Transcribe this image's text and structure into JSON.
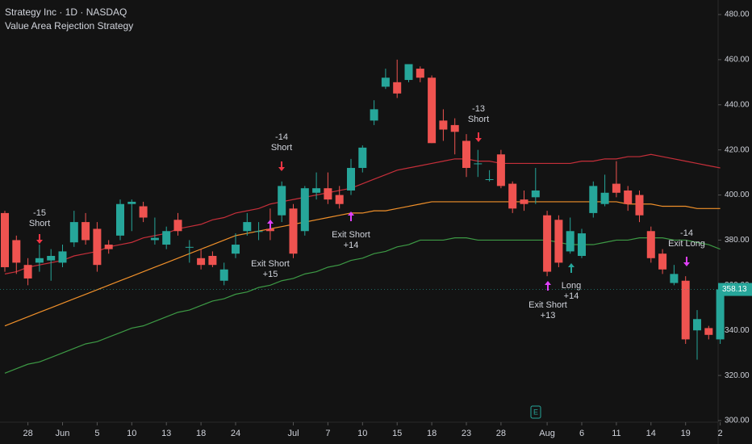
{
  "chart_data": {
    "type": "candlestick",
    "title": "Strategy Inc · 1D · NASDAQ",
    "subtitle": "Value Area Rejection Strategy",
    "categories": [
      null,
      null,
      "28",
      null,
      null,
      "Jun",
      null,
      null,
      "5",
      null,
      null,
      "10",
      null,
      null,
      "13",
      null,
      null,
      "18",
      null,
      null,
      "24",
      null,
      null,
      null,
      null,
      "Jul",
      null,
      null,
      "7",
      null,
      null,
      "10",
      null,
      null,
      "15",
      null,
      null,
      "18",
      null,
      null,
      "23",
      null,
      null,
      "28",
      null,
      null,
      null,
      "Aug",
      null,
      null,
      "6",
      null,
      null,
      "11",
      null,
      null,
      "14",
      null,
      null,
      "19",
      null,
      null,
      "2"
    ],
    "open": [
      392,
      380,
      369,
      370,
      371,
      370,
      379,
      388,
      385,
      378,
      382,
      396,
      395,
      380,
      378,
      389,
      377,
      372,
      373,
      362,
      374,
      384,
      384,
      385,
      391,
      394,
      384,
      401,
      403,
      400,
      402,
      412,
      433,
      448,
      450,
      451,
      456,
      452,
      433,
      431,
      424,
      414,
      407,
      418,
      405,
      398,
      399,
      391,
      389,
      375,
      373,
      392,
      396,
      405,
      402,
      400,
      384,
      374,
      361,
      362,
      340,
      341,
      336
    ],
    "high": [
      393,
      382,
      372,
      378,
      376,
      378,
      393,
      392,
      388,
      380,
      398,
      398,
      397,
      390,
      386,
      392,
      380,
      376,
      375,
      370,
      383,
      392,
      388,
      394,
      406,
      396,
      404,
      410,
      410,
      404,
      416,
      422,
      442,
      456,
      460,
      458,
      457,
      453,
      438,
      434,
      427,
      420,
      411,
      420,
      406,
      402,
      412,
      393,
      391,
      390,
      385,
      406,
      409,
      415,
      404,
      402,
      386,
      376,
      369,
      364,
      349,
      342,
      360
    ],
    "low": [
      366,
      365,
      360,
      366,
      362,
      368,
      377,
      378,
      366,
      374,
      380,
      384,
      388,
      378,
      376,
      382,
      370,
      367,
      368,
      360,
      372,
      382,
      380,
      380,
      388,
      372,
      382,
      398,
      396,
      394,
      400,
      410,
      431,
      447,
      443,
      450,
      450,
      423,
      424,
      418,
      408,
      408,
      406,
      403,
      392,
      393,
      396,
      364,
      368,
      374,
      372,
      390,
      395,
      399,
      393,
      388,
      370,
      365,
      360,
      334,
      327,
      336,
      334
    ],
    "close": [
      368,
      370,
      363,
      372,
      373,
      375,
      388,
      380,
      369,
      376,
      396,
      397,
      390,
      381,
      384,
      384,
      377,
      369,
      369,
      367,
      378,
      388,
      384,
      384,
      404,
      374,
      403,
      403,
      398,
      396,
      412,
      421,
      438,
      452,
      445,
      458,
      452,
      423,
      429,
      428,
      412,
      414,
      407,
      404,
      394,
      396,
      402,
      366,
      370,
      384,
      383,
      404,
      401,
      401,
      396,
      391,
      372,
      367,
      365,
      336,
      345,
      338,
      358.13
    ],
    "up_color": "#26a69a",
    "down_color": "#ef5350",
    "lines": [
      {
        "color": "#c62f3a",
        "values": [
          365,
          366,
          368,
          369,
          370,
          371,
          373,
          374,
          375,
          377,
          378,
          379,
          381,
          382,
          383,
          385,
          386,
          387,
          389,
          390,
          392,
          393,
          394,
          396,
          397,
          398,
          399,
          400,
          401,
          402,
          403,
          405,
          407,
          409,
          411,
          412,
          413,
          414,
          415,
          416,
          416,
          415,
          415,
          414,
          414,
          414,
          414,
          414,
          414,
          414,
          415,
          415,
          416,
          416,
          417,
          417,
          418,
          417,
          416,
          415,
          414,
          413,
          412
        ]
      },
      {
        "color": "#f0902a",
        "values": [
          342,
          344,
          346,
          348,
          350,
          352,
          354,
          356,
          358,
          360,
          362,
          364,
          366,
          368,
          370,
          372,
          374,
          376,
          378,
          380,
          382,
          383,
          384,
          385,
          386,
          387,
          388,
          389,
          390,
          391,
          392,
          392,
          393,
          393,
          394,
          395,
          396,
          397,
          397,
          397,
          397,
          397,
          397,
          397,
          397,
          397,
          397,
          397,
          397,
          397,
          397,
          397,
          397,
          397,
          396,
          396,
          396,
          395,
          395,
          395,
          394,
          394,
          394
        ]
      },
      {
        "color": "#3d9a45",
        "values": [
          321,
          323,
          325,
          326,
          328,
          330,
          332,
          334,
          335,
          337,
          339,
          341,
          342,
          344,
          346,
          348,
          349,
          351,
          353,
          354,
          356,
          357,
          359,
          360,
          362,
          363,
          365,
          366,
          368,
          369,
          371,
          372,
          374,
          375,
          377,
          378,
          380,
          380,
          380,
          381,
          381,
          380,
          380,
          380,
          380,
          380,
          380,
          380,
          379,
          378,
          378,
          378,
          379,
          380,
          380,
          381,
          381,
          381,
          380,
          380,
          379,
          378,
          376
        ]
      }
    ],
    "ylim": [
      300,
      480
    ],
    "yticks": [
      {
        "value": 300,
        "label": "300.00"
      },
      {
        "value": 320,
        "label": "320.00"
      },
      {
        "value": 340,
        "label": "340.00"
      },
      {
        "value": 360,
        "label": "360.00"
      },
      {
        "value": 380,
        "label": "380.00"
      },
      {
        "value": 400,
        "label": "400.00"
      },
      {
        "value": 420,
        "label": "420.00"
      },
      {
        "value": 440,
        "label": "440.00"
      },
      {
        "value": 460,
        "label": "460.00"
      },
      {
        "value": 480,
        "label": "480.00"
      }
    ],
    "last_price": 358.13,
    "earnings_marker": "E",
    "annotations": [
      {
        "lines": [
          "-15",
          "Short"
        ],
        "color": "#f23645"
      },
      {
        "lines": [
          "Exit Short",
          "+15"
        ],
        "color": "#e040fb"
      },
      {
        "lines": [
          "-14",
          "Short"
        ],
        "color": "#f23645"
      },
      {
        "lines": [
          "Exit Short",
          "+14"
        ],
        "color": "#e040fb"
      },
      {
        "lines": [
          "-13",
          "Short"
        ],
        "color": "#f23645"
      },
      {
        "lines": [
          "Exit Short",
          "+13"
        ],
        "color": "#e040fb"
      },
      {
        "lines": [
          "Long",
          "+14"
        ],
        "color": "#26a69a"
      },
      {
        "lines": [
          "-14",
          "Exit Long"
        ],
        "color": "#e040fb"
      }
    ]
  }
}
